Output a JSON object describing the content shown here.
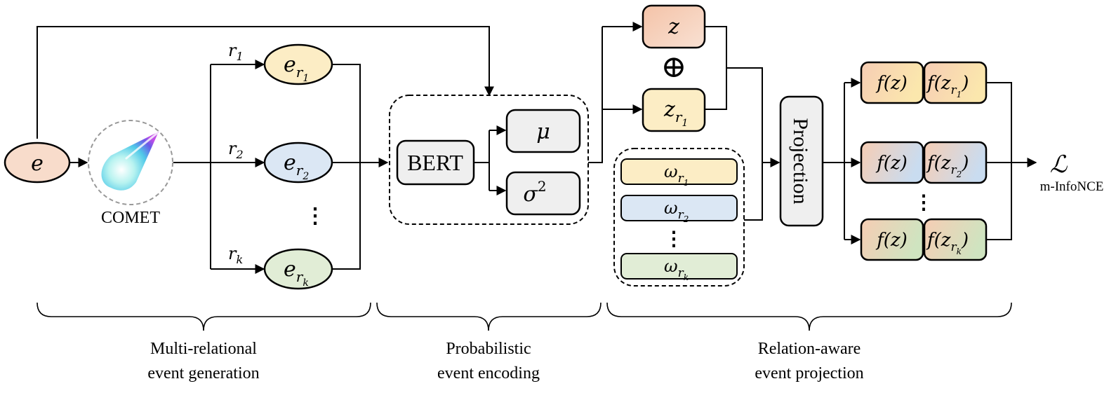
{
  "input_node": {
    "symbol": "e"
  },
  "comet": {
    "label": "COMET"
  },
  "relations": [
    {
      "edge": "r",
      "edge_sub": "1",
      "node": "e",
      "node_sub": "r",
      "node_subsub": "1",
      "fill": "#fcedc5"
    },
    {
      "edge": "r",
      "edge_sub": "2",
      "node": "e",
      "node_sub": "r",
      "node_subsub": "2",
      "fill": "#dbe7f4"
    },
    {
      "edge": "r",
      "edge_sub": "k",
      "node": "e",
      "node_sub": "r",
      "node_subsub": "k",
      "fill": "#e1edd6"
    }
  ],
  "vdots": "⋮",
  "encoder": {
    "bert_label": "BERT",
    "mu": "μ",
    "sigma": "σ",
    "sigma_sup": "2"
  },
  "z_nodes": {
    "z": "z",
    "zr1": "z",
    "zr1_sub": "r",
    "zr1_subsub": "1",
    "oplus": "⊕"
  },
  "omega": [
    {
      "sym": "ω",
      "sub": "r",
      "subsub": "1",
      "fill": "#fcedc5"
    },
    {
      "sym": "ω",
      "sub": "r",
      "subsub": "2",
      "fill": "#dbe7f4"
    },
    {
      "sym": "ω",
      "sub": "r",
      "subsub": "k",
      "fill": "#e1edd6"
    }
  ],
  "projection": {
    "label": "Projection"
  },
  "outputs": [
    {
      "left": "f(z)",
      "right": "f(z",
      "right_sub": "r",
      "right_subsub": "1",
      "right_close": ")"
    },
    {
      "left": "f(z)",
      "right": "f(z",
      "right_sub": "r",
      "right_subsub": "2",
      "right_close": ")"
    },
    {
      "left": "f(z)",
      "right": "f(z",
      "right_sub": "r",
      "right_subsub": "k",
      "right_close": ")"
    }
  ],
  "loss": {
    "symbol": "ℒ",
    "name": "m-InfoNCE"
  },
  "stages": [
    {
      "line1": "Multi-relational",
      "line2": "event generation"
    },
    {
      "line1": "Probabilistic",
      "line2": "event encoding"
    },
    {
      "line1": "Relation-aware",
      "line2": "event projection"
    }
  ],
  "colors": {
    "peach": "#f8dccb",
    "yellow": "#fcedc5",
    "blue": "#dbe7f4",
    "green": "#e1edd6",
    "gray": "#efefef",
    "stroke": "#000000"
  }
}
